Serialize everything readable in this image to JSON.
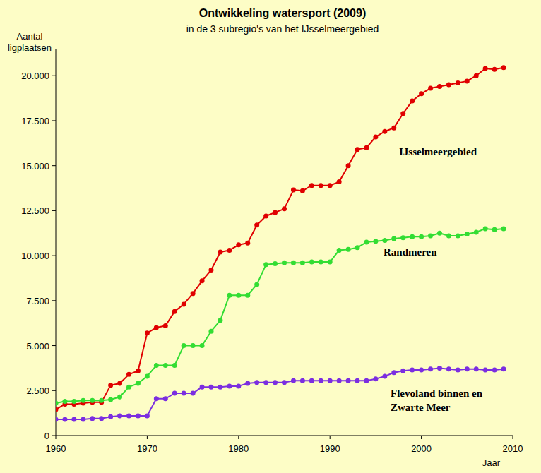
{
  "chart_data": {
    "type": "line",
    "title": "Ontwikkeling watersport (2009)",
    "subtitle": "in de 3 subregio's van het IJsselmeergebied",
    "y_label": "Aantal ligplaatsen",
    "x_label": "Jaar",
    "x": [
      1960,
      1961,
      1962,
      1963,
      1964,
      1965,
      1966,
      1967,
      1968,
      1969,
      1970,
      1971,
      1972,
      1973,
      1974,
      1975,
      1976,
      1977,
      1978,
      1979,
      1980,
      1981,
      1982,
      1983,
      1984,
      1985,
      1986,
      1987,
      1988,
      1989,
      1990,
      1991,
      1992,
      1993,
      1994,
      1995,
      1996,
      1997,
      1998,
      1999,
      2000,
      2001,
      2002,
      2003,
      2004,
      2005,
      2006,
      2007,
      2008,
      2009
    ],
    "series": [
      {
        "name": "IJsselmeergebied",
        "color": "#e00000",
        "marker": "circle",
        "values": [
          1450,
          1750,
          1750,
          1800,
          1850,
          1850,
          2800,
          2900,
          3400,
          3600,
          5700,
          6000,
          6100,
          6900,
          7300,
          7900,
          8600,
          9200,
          10200,
          10300,
          10600,
          10700,
          11700,
          12200,
          12400,
          12600,
          13650,
          13600,
          13900,
          13900,
          13900,
          14100,
          15000,
          15900,
          16000,
          16600,
          16900,
          17100,
          17900,
          18600,
          19000,
          19300,
          19400,
          19500,
          19600,
          19700,
          20000,
          20400,
          20350,
          20450
        ]
      },
      {
        "name": "Randmeren",
        "color": "#33dd33",
        "marker": "circle",
        "values": [
          1800,
          1900,
          1900,
          1950,
          1950,
          1950,
          2000,
          2150,
          2700,
          2900,
          3300,
          3900,
          3900,
          3900,
          5000,
          5000,
          5000,
          5800,
          6400,
          7800,
          7800,
          7800,
          8400,
          9500,
          9550,
          9600,
          9600,
          9600,
          9650,
          9650,
          9650,
          10300,
          10350,
          10450,
          10750,
          10800,
          10850,
          10950,
          11000,
          11050,
          11050,
          11100,
          11250,
          11100,
          11100,
          11200,
          11300,
          11500,
          11450,
          11500
        ]
      },
      {
        "name": "Flevoland binnen en Zwarte Meer",
        "color": "#7b2ee0",
        "marker": "circle",
        "values": [
          900,
          900,
          900,
          900,
          950,
          950,
          1050,
          1100,
          1100,
          1100,
          1100,
          2050,
          2050,
          2350,
          2350,
          2350,
          2700,
          2700,
          2700,
          2750,
          2750,
          2900,
          2950,
          2950,
          2950,
          2950,
          3050,
          3050,
          3050,
          3050,
          3050,
          3050,
          3050,
          3050,
          3050,
          3150,
          3300,
          3500,
          3600,
          3650,
          3650,
          3700,
          3750,
          3700,
          3650,
          3700,
          3700,
          3650,
          3650,
          3700
        ]
      }
    ],
    "xlim": [
      1960,
      2010
    ],
    "xticks": [
      1960,
      1970,
      1980,
      1990,
      2000,
      2010
    ],
    "ylim": [
      0,
      21500
    ],
    "yticks": [
      0,
      {
        "value": 2500,
        "label": "2.500"
      },
      {
        "value": 5000,
        "label": "5.000"
      },
      {
        "value": 7500,
        "label": "7.500"
      },
      {
        "value": 10000,
        "label": "10.000"
      },
      {
        "value": 12500,
        "label": "12.500"
      },
      {
        "value": 15000,
        "label": "15.000"
      },
      {
        "value": 17500,
        "label": "17.500"
      },
      {
        "value": 20000,
        "label": "20.000"
      }
    ],
    "grid": false
  }
}
